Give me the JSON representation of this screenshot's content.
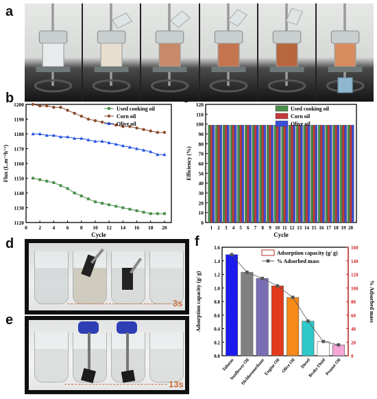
{
  "panel_labels": {
    "a": "a",
    "b": "b",
    "c": "c",
    "d": "d",
    "e": "e",
    "f": "f"
  },
  "photo_times": {
    "d": "3s",
    "e": "13s"
  },
  "chart_data": [
    {
      "id": "b",
      "type": "line",
      "xlabel": "Cycle",
      "ylabel": "Flux (L.m⁻²h⁻¹)",
      "xlim": [
        0,
        21
      ],
      "ylim": [
        1120,
        1200
      ],
      "xticks": [
        0,
        2,
        4,
        6,
        8,
        10,
        12,
        14,
        16,
        18,
        20
      ],
      "yticks": [
        1120,
        1130,
        1140,
        1150,
        1160,
        1170,
        1180,
        1190,
        1200
      ],
      "legend_position": "top-right",
      "series": [
        {
          "name": "Used cooking oil",
          "color": "#4a8f4a",
          "marker": "square",
          "x": [
            1,
            2,
            3,
            4,
            5,
            6,
            7,
            8,
            9,
            10,
            11,
            12,
            13,
            14,
            15,
            16,
            17,
            18,
            19,
            20
          ],
          "y": [
            1150,
            1149,
            1148,
            1147,
            1145,
            1143,
            1140,
            1138,
            1136,
            1134,
            1133,
            1132,
            1131,
            1130,
            1129,
            1128,
            1127,
            1126,
            1126,
            1126
          ]
        },
        {
          "name": "Corn oil",
          "color": "#8b4a2b",
          "marker": "circle",
          "x": [
            1,
            2,
            3,
            4,
            5,
            6,
            7,
            8,
            9,
            10,
            11,
            12,
            13,
            14,
            15,
            16,
            17,
            18,
            19,
            20
          ],
          "y": [
            1200,
            1199,
            1199,
            1198,
            1198,
            1196,
            1194,
            1192,
            1190,
            1189,
            1188,
            1187,
            1186,
            1185,
            1185,
            1184,
            1183,
            1182,
            1181,
            1181
          ]
        },
        {
          "name": "Olive oil",
          "color": "#1f4fe0",
          "marker": "triangle",
          "x": [
            1,
            2,
            3,
            4,
            5,
            6,
            7,
            8,
            9,
            10,
            11,
            12,
            13,
            14,
            15,
            16,
            17,
            18,
            19,
            20
          ],
          "y": [
            1180,
            1180,
            1179,
            1179,
            1178,
            1178,
            1177,
            1177,
            1176,
            1175,
            1175,
            1174,
            1173,
            1172,
            1171,
            1170,
            1169,
            1168,
            1166,
            1166
          ]
        }
      ]
    },
    {
      "id": "c",
      "type": "bar",
      "xlabel": "Cycle",
      "ylabel": "Efficiency (%)",
      "ylim": [
        0,
        120
      ],
      "yticks": [
        0,
        10,
        20,
        30,
        40,
        50,
        60,
        70,
        80,
        90,
        100,
        110,
        120
      ],
      "categories": [
        "1",
        "2",
        "3",
        "4",
        "5",
        "6",
        "7",
        "8",
        "9",
        "10",
        "11",
        "12",
        "13",
        "14",
        "15",
        "16",
        "17",
        "18",
        "19",
        "20"
      ],
      "legend_position": "top-right",
      "series": [
        {
          "name": "Used cooking oil",
          "color": "#4a8f4a",
          "values": [
            99,
            99,
            99,
            99,
            99,
            99,
            99,
            99,
            99,
            99,
            99,
            99,
            99,
            99,
            99,
            99,
            99,
            99,
            99,
            99
          ]
        },
        {
          "name": "Corn oil",
          "color": "#c43a3a",
          "values": [
            99,
            99,
            99,
            99,
            99,
            99,
            99,
            99,
            99,
            99,
            99,
            99,
            99,
            99,
            99,
            99,
            99,
            99,
            99,
            99
          ]
        },
        {
          "name": "Olive oil",
          "color": "#3a4fd8",
          "values": [
            99,
            99,
            99,
            99,
            99,
            99,
            99,
            99,
            99,
            99,
            99,
            99,
            99,
            99,
            99,
            99,
            99,
            99,
            99,
            99
          ]
        }
      ]
    },
    {
      "id": "f",
      "type": "bar",
      "ylabel": "Adsorption capacity (g/ g)",
      "y2label": "% Adsorbed mass",
      "ylim": [
        0,
        1.6
      ],
      "yticks": [
        0.0,
        0.2,
        0.4,
        0.6,
        0.8,
        1.0,
        1.2,
        1.4,
        1.6
      ],
      "y2lim": [
        0,
        160
      ],
      "y2ticks": [
        0,
        20,
        40,
        60,
        80,
        100,
        120,
        140,
        160
      ],
      "legend_position": "top-right",
      "categories": [
        "Toluene",
        "Sunflower Oil",
        "Dichloromethane",
        "Engine Oil",
        "Olive Oil",
        "Diesel",
        "Brake Fluid",
        "Peanut Oil"
      ],
      "series": [
        {
          "name": "Adsorption capacity (g/ g)",
          "values": [
            1.49,
            1.23,
            1.14,
            1.03,
            0.86,
            0.51,
            0.21,
            0.16
          ],
          "colors": [
            "#1b1bf0",
            "#808080",
            "#7a6fb5",
            "#e23a1b",
            "#f58a1a",
            "#2fc8c8",
            "#ffffff",
            "#f5a6d6"
          ]
        },
        {
          "name": "% Adsorbed mass",
          "values": [
            149,
            123,
            114,
            103,
            86,
            51,
            21,
            16
          ]
        }
      ]
    }
  ]
}
